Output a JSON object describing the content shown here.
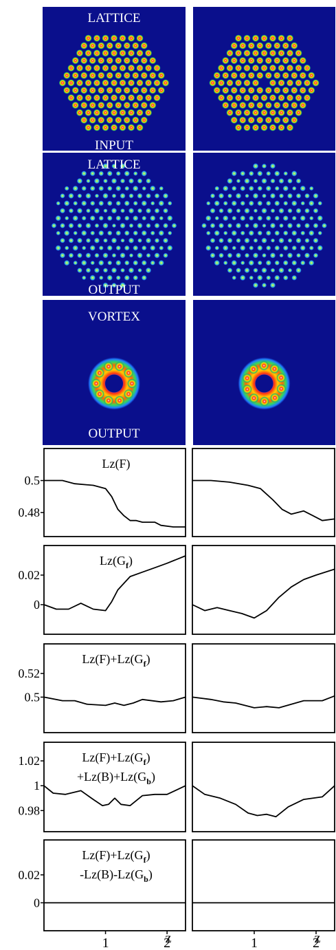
{
  "panel_rows": [
    {
      "top_label": "LATTICE",
      "bottom_label": "INPUT",
      "kind": "lattice-input"
    },
    {
      "top_label": "LATTICE",
      "bottom_label": "OUTPUT",
      "kind": "lattice-output"
    },
    {
      "top_label": "VORTEX",
      "bottom_label": "OUTPUT",
      "kind": "vortex"
    }
  ],
  "colors": {
    "panel_bg": "#0a0f8c",
    "line": "#000000"
  },
  "chart_data": [
    {
      "type": "line",
      "title_parts": [
        "Lz(F)"
      ],
      "ylim": [
        0.465,
        0.52
      ],
      "yticks": [
        {
          "v": 0.5,
          "label": "0.5"
        },
        {
          "v": 0.48,
          "label": "0.48"
        }
      ],
      "xlim": [
        0,
        2.3
      ],
      "left": {
        "x": [
          0,
          0.3,
          0.5,
          0.8,
          1.0,
          1.1,
          1.2,
          1.3,
          1.4,
          1.5,
          1.6,
          1.8,
          1.9,
          2.1,
          2.3
        ],
        "y": [
          0.5,
          0.5,
          0.498,
          0.497,
          0.495,
          0.49,
          0.482,
          0.478,
          0.475,
          0.475,
          0.474,
          0.474,
          0.472,
          0.471,
          0.471
        ]
      },
      "right": {
        "x": [
          0,
          0.3,
          0.6,
          0.9,
          1.1,
          1.3,
          1.45,
          1.6,
          1.8,
          1.95,
          2.1,
          2.3
        ],
        "y": [
          0.5,
          0.5,
          0.499,
          0.497,
          0.495,
          0.488,
          0.482,
          0.479,
          0.481,
          0.478,
          0.475,
          0.476
        ]
      }
    },
    {
      "type": "line",
      "title_parts": [
        "Lz(G",
        "f",
        ")"
      ],
      "ylim": [
        -0.02,
        0.04
      ],
      "yticks": [
        {
          "v": 0.02,
          "label": "0.02"
        },
        {
          "v": 0,
          "label": "0"
        }
      ],
      "xlim": [
        0,
        2.3
      ],
      "left": {
        "x": [
          0,
          0.2,
          0.4,
          0.6,
          0.8,
          1.0,
          1.1,
          1.2,
          1.4,
          1.6,
          1.8,
          2.0,
          2.3
        ],
        "y": [
          0,
          -0.003,
          -0.003,
          0.001,
          -0.003,
          -0.004,
          0.002,
          0.01,
          0.019,
          0.022,
          0.025,
          0.028,
          0.033
        ]
      },
      "right": {
        "x": [
          0,
          0.2,
          0.4,
          0.6,
          0.8,
          1.0,
          1.2,
          1.4,
          1.6,
          1.8,
          2.0,
          2.3
        ],
        "y": [
          0,
          -0.004,
          -0.002,
          -0.004,
          -0.006,
          -0.009,
          -0.004,
          0.005,
          0.012,
          0.017,
          0.02,
          0.024
        ]
      }
    },
    {
      "type": "line",
      "title_parts": [
        "Lz(F)+Lz(G",
        "f",
        ")"
      ],
      "ylim": [
        0.47,
        0.545
      ],
      "yticks": [
        {
          "v": 0.52,
          "label": "0.52"
        },
        {
          "v": 0.5,
          "label": "0.5"
        }
      ],
      "xlim": [
        0,
        2.3
      ],
      "left": {
        "x": [
          0,
          0.3,
          0.5,
          0.7,
          1.0,
          1.15,
          1.3,
          1.45,
          1.6,
          1.9,
          2.1,
          2.3
        ],
        "y": [
          0.5,
          0.497,
          0.497,
          0.494,
          0.493,
          0.495,
          0.493,
          0.495,
          0.498,
          0.496,
          0.497,
          0.5
        ]
      },
      "right": {
        "x": [
          0,
          0.3,
          0.5,
          0.7,
          1.0,
          1.2,
          1.4,
          1.6,
          1.8,
          2.1,
          2.3
        ],
        "y": [
          0.5,
          0.498,
          0.496,
          0.495,
          0.491,
          0.492,
          0.491,
          0.494,
          0.497,
          0.497,
          0.501
        ]
      }
    },
    {
      "type": "line",
      "title_parts": [
        "Lz(F)+Lz(G",
        "f",
        ")"
      ],
      "title2_parts": [
        "+Lz(B)+Lz(G",
        "b",
        ")"
      ],
      "ylim": [
        0.963,
        1.035
      ],
      "yticks": [
        {
          "v": 1.02,
          "label": "1.02"
        },
        {
          "v": 1,
          "label": "1"
        },
        {
          "v": 0.98,
          "label": "0.98"
        }
      ],
      "xlim": [
        0,
        2.3
      ],
      "left": {
        "x": [
          0,
          0.15,
          0.35,
          0.6,
          0.8,
          0.95,
          1.05,
          1.15,
          1.25,
          1.4,
          1.6,
          1.8,
          2.0,
          2.3
        ],
        "y": [
          1.0,
          0.994,
          0.993,
          0.996,
          0.989,
          0.984,
          0.985,
          0.99,
          0.985,
          0.984,
          0.992,
          0.993,
          0.993,
          1.0
        ]
      },
      "right": {
        "x": [
          0,
          0.2,
          0.45,
          0.7,
          0.9,
          1.05,
          1.2,
          1.35,
          1.55,
          1.8,
          2.1,
          2.3
        ],
        "y": [
          1.0,
          0.993,
          0.99,
          0.985,
          0.978,
          0.976,
          0.977,
          0.975,
          0.983,
          0.989,
          0.991,
          1.0
        ]
      }
    },
    {
      "type": "line",
      "title_parts": [
        "Lz(F)+Lz(G",
        "f",
        ")"
      ],
      "title2_parts": [
        "-Lz(B)-Lz(G",
        "b",
        ")"
      ],
      "ylim": [
        -0.02,
        0.045
      ],
      "yticks": [
        {
          "v": 0.02,
          "label": "0.02"
        },
        {
          "v": 0,
          "label": "0"
        }
      ],
      "xlim": [
        0,
        2.3
      ],
      "xticks": [
        {
          "v": 1,
          "label": "1"
        },
        {
          "v": 2,
          "label": "2"
        }
      ],
      "xlabel": "z",
      "left": {
        "x": [
          0,
          2.3
        ],
        "y": [
          0,
          0
        ]
      },
      "right": {
        "x": [
          0,
          2.3
        ],
        "y": [
          0,
          0
        ]
      }
    }
  ]
}
